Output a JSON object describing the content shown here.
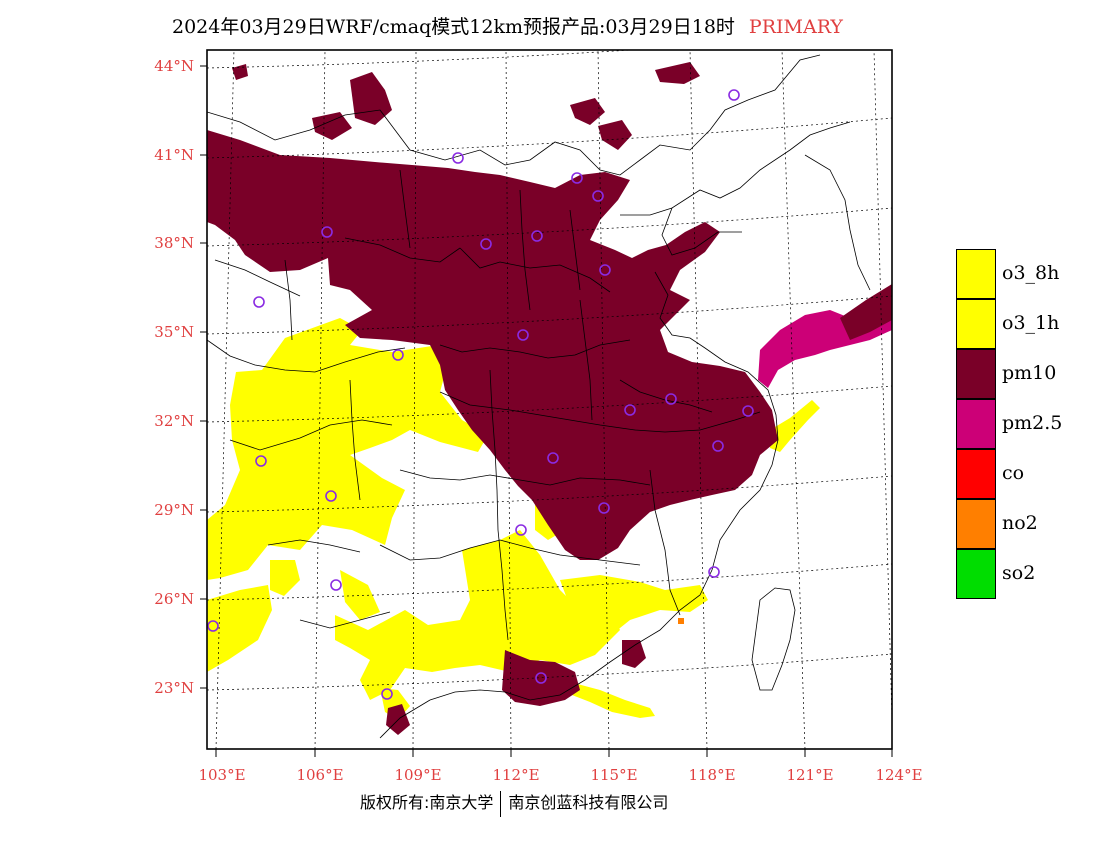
{
  "header": {
    "title": "2024年03月29日WRF/cmaq模式12km预报产品:03月29日18时",
    "variant": "PRIMARY"
  },
  "map": {
    "lat_labels": [
      "44°N",
      "41°N",
      "38°N",
      "35°N",
      "32°N",
      "29°N",
      "26°N",
      "23°N"
    ],
    "lon_labels": [
      "103°E",
      "106°E",
      "109°E",
      "112°E",
      "115°E",
      "118°E",
      "121°E",
      "124°E"
    ],
    "colors": {
      "o3_8h": "#ffff00",
      "o3_1h": "#ffff00",
      "pm10": "#7a0028",
      "pm25": "#cc0077",
      "co": "#ff0000",
      "no2": "#ff7f00",
      "so2": "#00dd00",
      "station_marker": "#8a2be2",
      "axis_label": "#e04040"
    },
    "station_marker_icon": "circle-outline-icon"
  },
  "legend": {
    "items": [
      {
        "label": "o3_8h",
        "color": "#ffff00"
      },
      {
        "label": "o3_1h",
        "color": "#ffff00"
      },
      {
        "label": "pm10",
        "color": "#7a0028"
      },
      {
        "label": "pm2.5",
        "color": "#cc0077"
      },
      {
        "label": "co",
        "color": "#ff0000"
      },
      {
        "label": "no2",
        "color": "#ff7f00"
      },
      {
        "label": "so2",
        "color": "#00dd00"
      }
    ]
  },
  "footer": {
    "left": "版权所有:南京大学",
    "right": "南京创蓝科技有限公司"
  }
}
